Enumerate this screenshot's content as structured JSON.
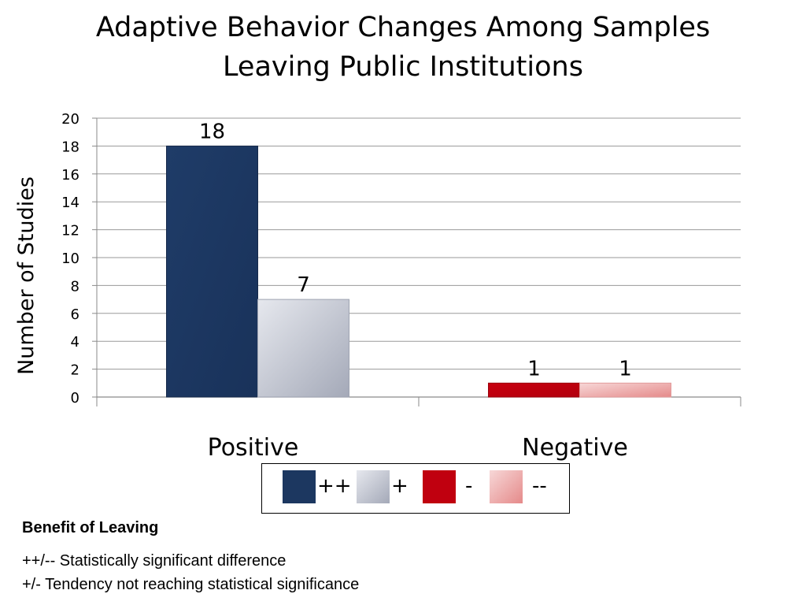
{
  "chart_data": {
    "type": "bar",
    "title": [
      "Adaptive Behavior Changes Among Samples",
      "Leaving Public Institutions"
    ],
    "ylabel": "Number of Studies",
    "xlabel": "",
    "categories": [
      "Positive",
      "Negative"
    ],
    "ylim": [
      0,
      20
    ],
    "yticks": [
      0,
      2,
      4,
      6,
      8,
      10,
      12,
      14,
      16,
      18,
      20
    ],
    "grid": true,
    "legend_position": "bottom",
    "series": [
      {
        "name": "++",
        "values": [
          18,
          null
        ],
        "data_labels": [
          "18",
          ""
        ],
        "color": "#1c3760"
      },
      {
        "name": "+",
        "values": [
          7,
          null
        ],
        "data_labels": [
          "7",
          ""
        ],
        "color": "#c7cad4"
      },
      {
        "name": "-",
        "values": [
          null,
          1
        ],
        "data_labels": [
          "",
          "1"
        ],
        "color": "#c0000f"
      },
      {
        "name": "--",
        "values": [
          null,
          1
        ],
        "data_labels": [
          "",
          "1"
        ],
        "color": "#f0b4b4"
      }
    ]
  },
  "notes": {
    "heading": "Benefit of Leaving",
    "lines": [
      "++/-- Statistically significant difference",
      "+/- Tendency not reaching statistical significance"
    ]
  }
}
